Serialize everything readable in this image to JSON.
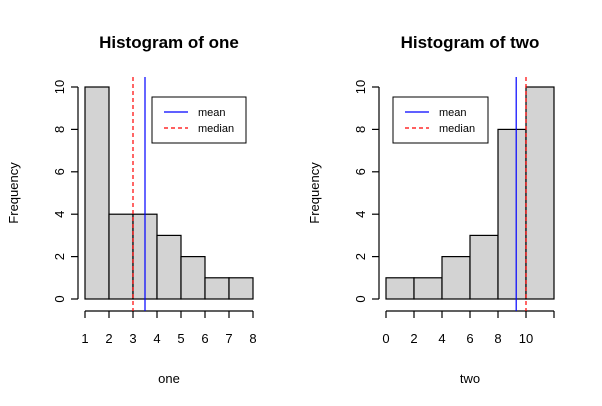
{
  "chart_data": [
    {
      "type": "bar",
      "title": "Histogram of one",
      "xlabel": "one",
      "ylabel": "Frequency",
      "breaks": [
        1,
        2,
        3,
        4,
        5,
        6,
        7,
        8
      ],
      "values": [
        10,
        4,
        4,
        3,
        2,
        1,
        1
      ],
      "xlim": [
        1,
        8
      ],
      "ylim": [
        0,
        10
      ],
      "xticks": [
        1,
        2,
        3,
        4,
        5,
        6,
        7,
        8
      ],
      "xtick_labels": [
        "1",
        "2",
        "3",
        "4",
        "5",
        "6",
        "7",
        "8"
      ],
      "yticks": [
        0,
        2,
        4,
        6,
        8,
        10
      ],
      "ytick_labels": [
        "0",
        "2",
        "4",
        "6",
        "8",
        "10"
      ],
      "bar_color": "#d3d3d3",
      "lines": [
        {
          "name": "mean",
          "x": 3.5,
          "color": "#0000ff",
          "style": "solid"
        },
        {
          "name": "median",
          "x": 3.0,
          "color": "#ff0000",
          "style": "dashed"
        }
      ],
      "legend": {
        "position": "top-right",
        "entries": [
          "mean",
          "median"
        ]
      }
    },
    {
      "type": "bar",
      "title": "Histogram of two",
      "xlabel": "two",
      "ylabel": "Frequency",
      "breaks": [
        0,
        2,
        4,
        6,
        8,
        10,
        12
      ],
      "values": [
        1,
        1,
        2,
        3,
        8,
        10
      ],
      "xlim": [
        0,
        12
      ],
      "ylim": [
        0,
        10
      ],
      "xticks": [
        0,
        2,
        4,
        6,
        8,
        10,
        12
      ],
      "xtick_labels": [
        "0",
        "2",
        "4",
        "6",
        "8",
        "10",
        ""
      ],
      "yticks": [
        0,
        2,
        4,
        6,
        8,
        10
      ],
      "ytick_labels": [
        "0",
        "2",
        "4",
        "6",
        "8",
        "10"
      ],
      "bar_color": "#d3d3d3",
      "lines": [
        {
          "name": "mean",
          "x": 9.3,
          "color": "#0000ff",
          "style": "solid"
        },
        {
          "name": "median",
          "x": 10.0,
          "color": "#ff0000",
          "style": "dashed"
        }
      ],
      "legend": {
        "position": "top-left",
        "entries": [
          "mean",
          "median"
        ]
      }
    }
  ]
}
